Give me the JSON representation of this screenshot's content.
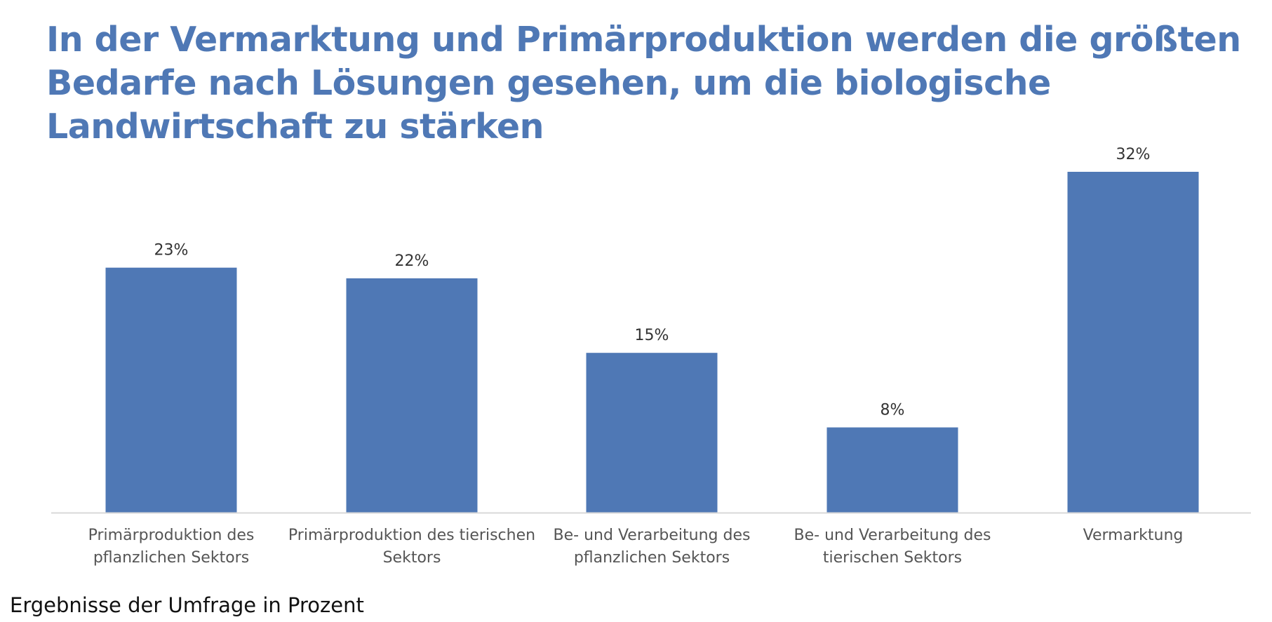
{
  "chart_data": {
    "type": "bar",
    "title": "In der Vermarktung und Primärproduktion werden die größten Bedarfe nach Lösungen gesehen, um die biologische Landwirtschaft zu stärken",
    "categories": [
      [
        "Primärproduktion des",
        "pflanzlichen Sektors"
      ],
      [
        "Primärproduktion des tierischen",
        "Sektors"
      ],
      [
        "Be- und Verarbeitung des",
        "pflanzlichen Sektors"
      ],
      [
        "Be- und Verarbeitung des",
        "tierischen Sektors"
      ],
      [
        "Vermarktung"
      ]
    ],
    "values": [
      23,
      22,
      15,
      8,
      32
    ],
    "value_labels": [
      "23%",
      "22%",
      "15%",
      "8%",
      "32%"
    ],
    "ylim": [
      0,
      32
    ],
    "grid": false,
    "bar_color": "#4f78b5",
    "axis_color": "#d9d9d9"
  },
  "footnote": "Ergebnisse der Umfrage in Prozent"
}
